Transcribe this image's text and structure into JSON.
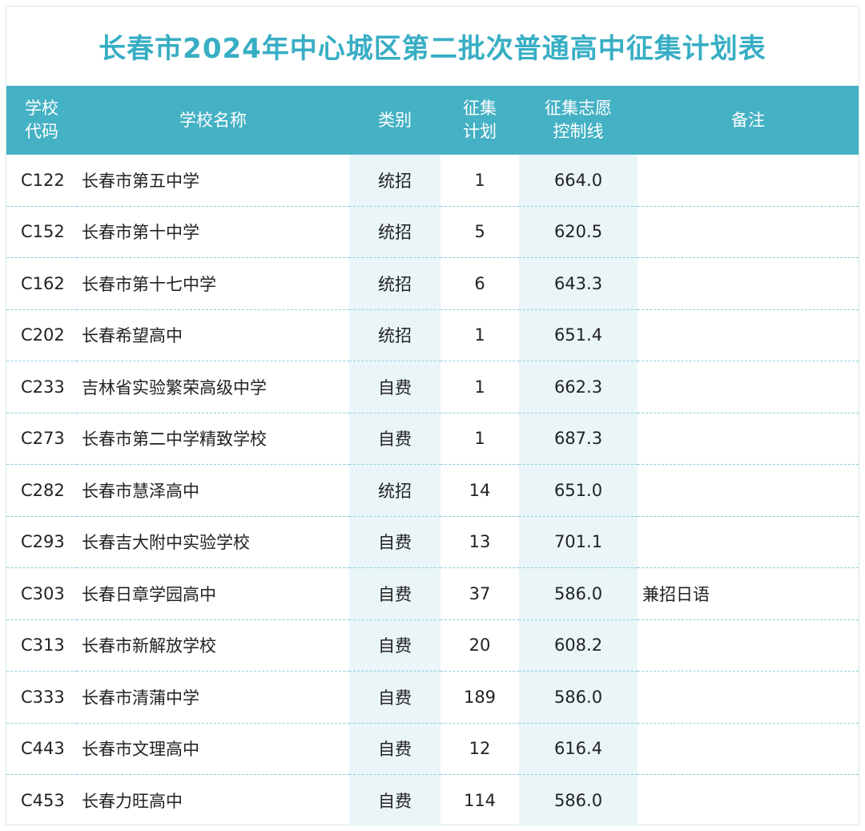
{
  "title": "长春市2024年中心城区第二批次普通高中征集计划表",
  "headers": {
    "code_line1": "学校",
    "code_line2": "代码",
    "name": "学校名称",
    "category": "类别",
    "plan_line1": "征集",
    "plan_line2": "计划",
    "line_line1": "征集志愿",
    "line_line2": "控制线",
    "note": "备注"
  },
  "rows": [
    {
      "code": "C122",
      "name": "长春市第五中学",
      "category": "统招",
      "plan": "1",
      "line": "664.0",
      "note": ""
    },
    {
      "code": "C152",
      "name": "长春市第十中学",
      "category": "统招",
      "plan": "5",
      "line": "620.5",
      "note": ""
    },
    {
      "code": "C162",
      "name": "长春市第十七中学",
      "category": "统招",
      "plan": "6",
      "line": "643.3",
      "note": ""
    },
    {
      "code": "C202",
      "name": "长春希望高中",
      "category": "统招",
      "plan": "1",
      "line": "651.4",
      "note": ""
    },
    {
      "code": "C233",
      "name": "吉林省实验繁荣高级中学",
      "category": "自费",
      "plan": "1",
      "line": "662.3",
      "note": ""
    },
    {
      "code": "C273",
      "name": "长春市第二中学精致学校",
      "category": "自费",
      "plan": "1",
      "line": "687.3",
      "note": ""
    },
    {
      "code": "C282",
      "name": "长春市慧泽高中",
      "category": "统招",
      "plan": "14",
      "line": "651.0",
      "note": ""
    },
    {
      "code": "C293",
      "name": "长春吉大附中实验学校",
      "category": "自费",
      "plan": "13",
      "line": "701.1",
      "note": ""
    },
    {
      "code": "C303",
      "name": "长春日章学园高中",
      "category": "自费",
      "plan": "37",
      "line": "586.0",
      "note": "兼招日语"
    },
    {
      "code": "C313",
      "name": "长春市新解放学校",
      "category": "自费",
      "plan": "20",
      "line": "608.2",
      "note": ""
    },
    {
      "code": "C333",
      "name": "长春市清蒲中学",
      "category": "自费",
      "plan": "189",
      "line": "586.0",
      "note": ""
    },
    {
      "code": "C443",
      "name": "长春市文理高中",
      "category": "自费",
      "plan": "12",
      "line": "616.4",
      "note": ""
    },
    {
      "code": "C453",
      "name": "长春力旺高中",
      "category": "自费",
      "plan": "114",
      "line": "586.0",
      "note": ""
    }
  ],
  "colors": {
    "title": "#38aec4",
    "header_bg": "#45b1c4",
    "header_text": "#ffffff",
    "tint": "#eaf5f8",
    "divider": "#8fcfdc"
  }
}
